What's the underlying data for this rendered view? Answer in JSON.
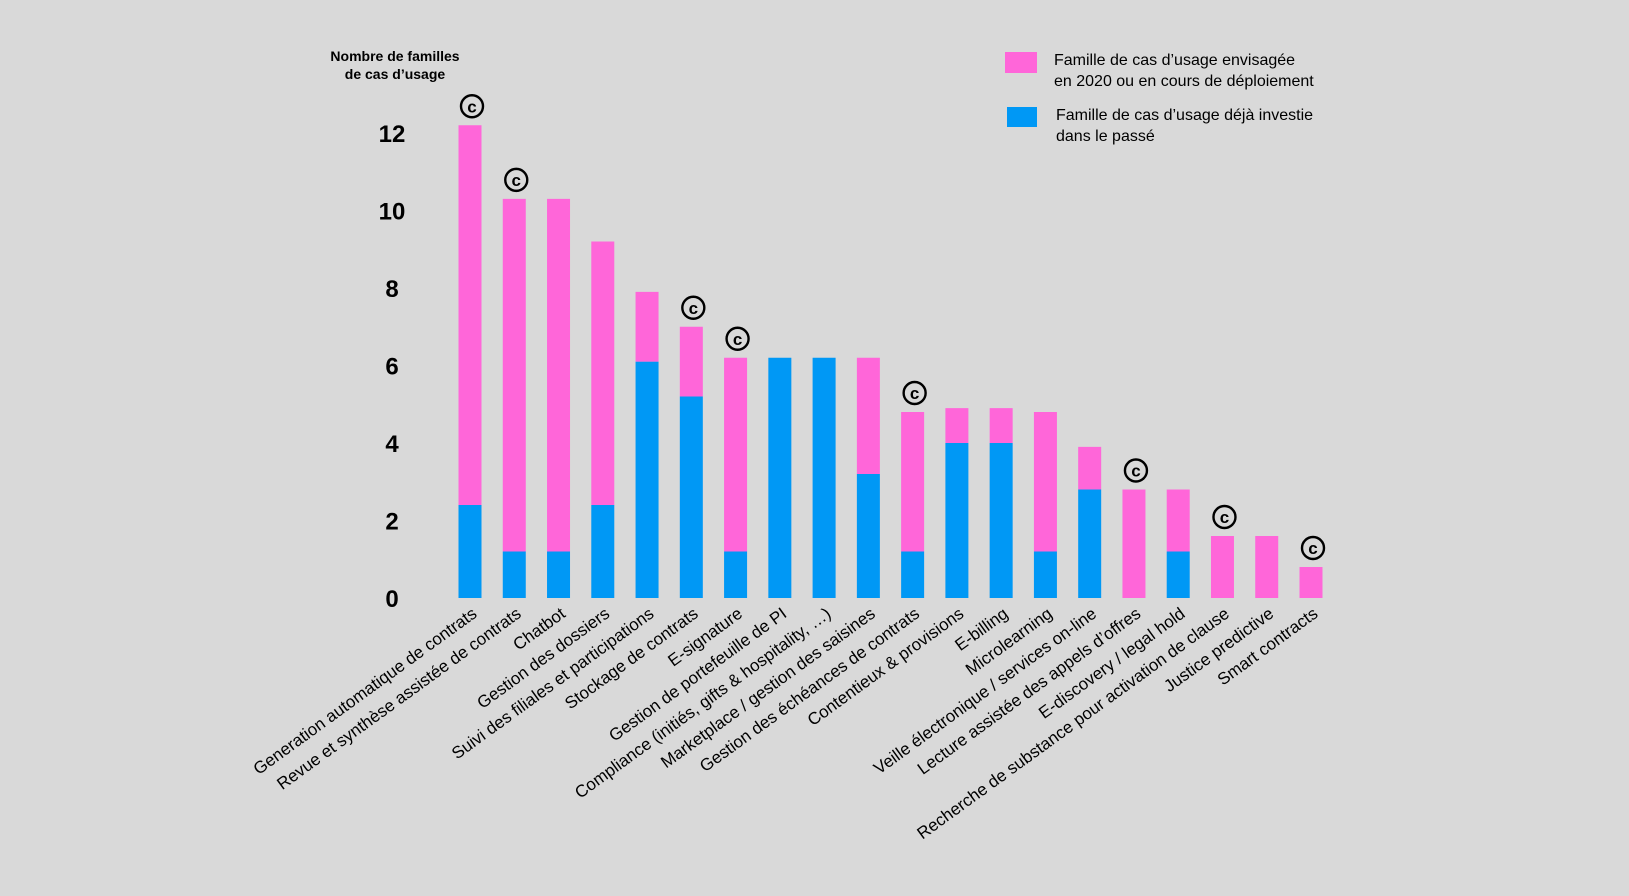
{
  "colors": {
    "background": "#d9d9d9",
    "pink": "#ff66d9",
    "blue": "#0098f5",
    "text": "#000000"
  },
  "chart_data": {
    "type": "bar",
    "stacked": true,
    "ylabel_line1": "Nombre de familles",
    "ylabel_line2": "de cas d’usage",
    "ylim": [
      0,
      12
    ],
    "yticks": [
      "0",
      "2",
      "4",
      "6",
      "8",
      "10",
      "12"
    ],
    "grid": false,
    "legend_position": "top-right",
    "marker_symbol": "©",
    "legend": [
      {
        "key": "pink",
        "color": "#ff66d9",
        "line1": "Famille de cas d’usage envisagée",
        "line2": "en 2020 ou en cours de déploiement"
      },
      {
        "key": "blue",
        "color": "#0098f5",
        "line1": "Famille de cas d’usage déjà investie",
        "line2": "dans le passé"
      }
    ],
    "categories": [
      "Generation automatique de contrats",
      "Revue et synthèse assistée de contrats",
      "Chatbot",
      "Gestion des dossiers",
      "Suivi des filiales et participations",
      "Stockage de contrats",
      "E-signature",
      "Gestion de portefeuille de PI",
      "Compliance (initiés, gifts & hospitality, …)",
      "Marketplace / gestion des saisines",
      "Gestion des échéances de contrats",
      "Contentieux & provisions",
      "E-billing",
      "Microlearning",
      "Veille électronique / services on-line",
      "Lecture assistée des appels d’offres",
      "E-discovery / legal hold",
      "Recherche de substance pour activation de clause",
      "Justice predictive",
      "Smart contracts"
    ],
    "series": [
      {
        "key": "blue",
        "values": [
          2.4,
          1.2,
          1.2,
          2.4,
          6.1,
          5.2,
          1.2,
          6.2,
          6.2,
          3.2,
          1.2,
          4.0,
          4.0,
          1.2,
          2.8,
          0,
          1.2,
          0,
          0,
          0
        ]
      },
      {
        "key": "pink",
        "values": [
          9.8,
          9.1,
          9.1,
          6.8,
          1.8,
          1.8,
          5.0,
          0,
          0,
          3.0,
          3.6,
          0.9,
          0.9,
          3.6,
          1.1,
          2.8,
          1.6,
          1.6,
          1.6,
          0.8
        ]
      }
    ],
    "marked": [
      true,
      true,
      false,
      false,
      false,
      true,
      true,
      false,
      false,
      false,
      true,
      false,
      false,
      false,
      false,
      true,
      false,
      true,
      false,
      true
    ]
  }
}
